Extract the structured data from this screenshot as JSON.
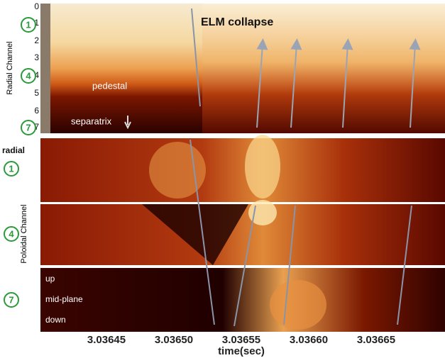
{
  "figure": {
    "top_panel": {
      "y_label": "Radial Channel",
      "y_ticks": [
        "0",
        "1",
        "2",
        "3",
        "4",
        "5",
        "6",
        "7"
      ],
      "markers": [
        "1",
        "4",
        "7"
      ],
      "annotations": {
        "elm": "ELM collapse",
        "pedestal": "pedestal",
        "separatrix": "separatrix"
      }
    },
    "lower_panels": {
      "radial_label": "radial",
      "y_label": "Poloidal Channel",
      "markers": [
        "1",
        "4",
        "7"
      ],
      "positions": [
        "up",
        "mid-plane",
        "down"
      ]
    },
    "x_axis": {
      "ticks": [
        "3.03645",
        "3.03650",
        "3.03655",
        "3.03660",
        "3.03665"
      ],
      "label": "time(sec)"
    }
  }
}
